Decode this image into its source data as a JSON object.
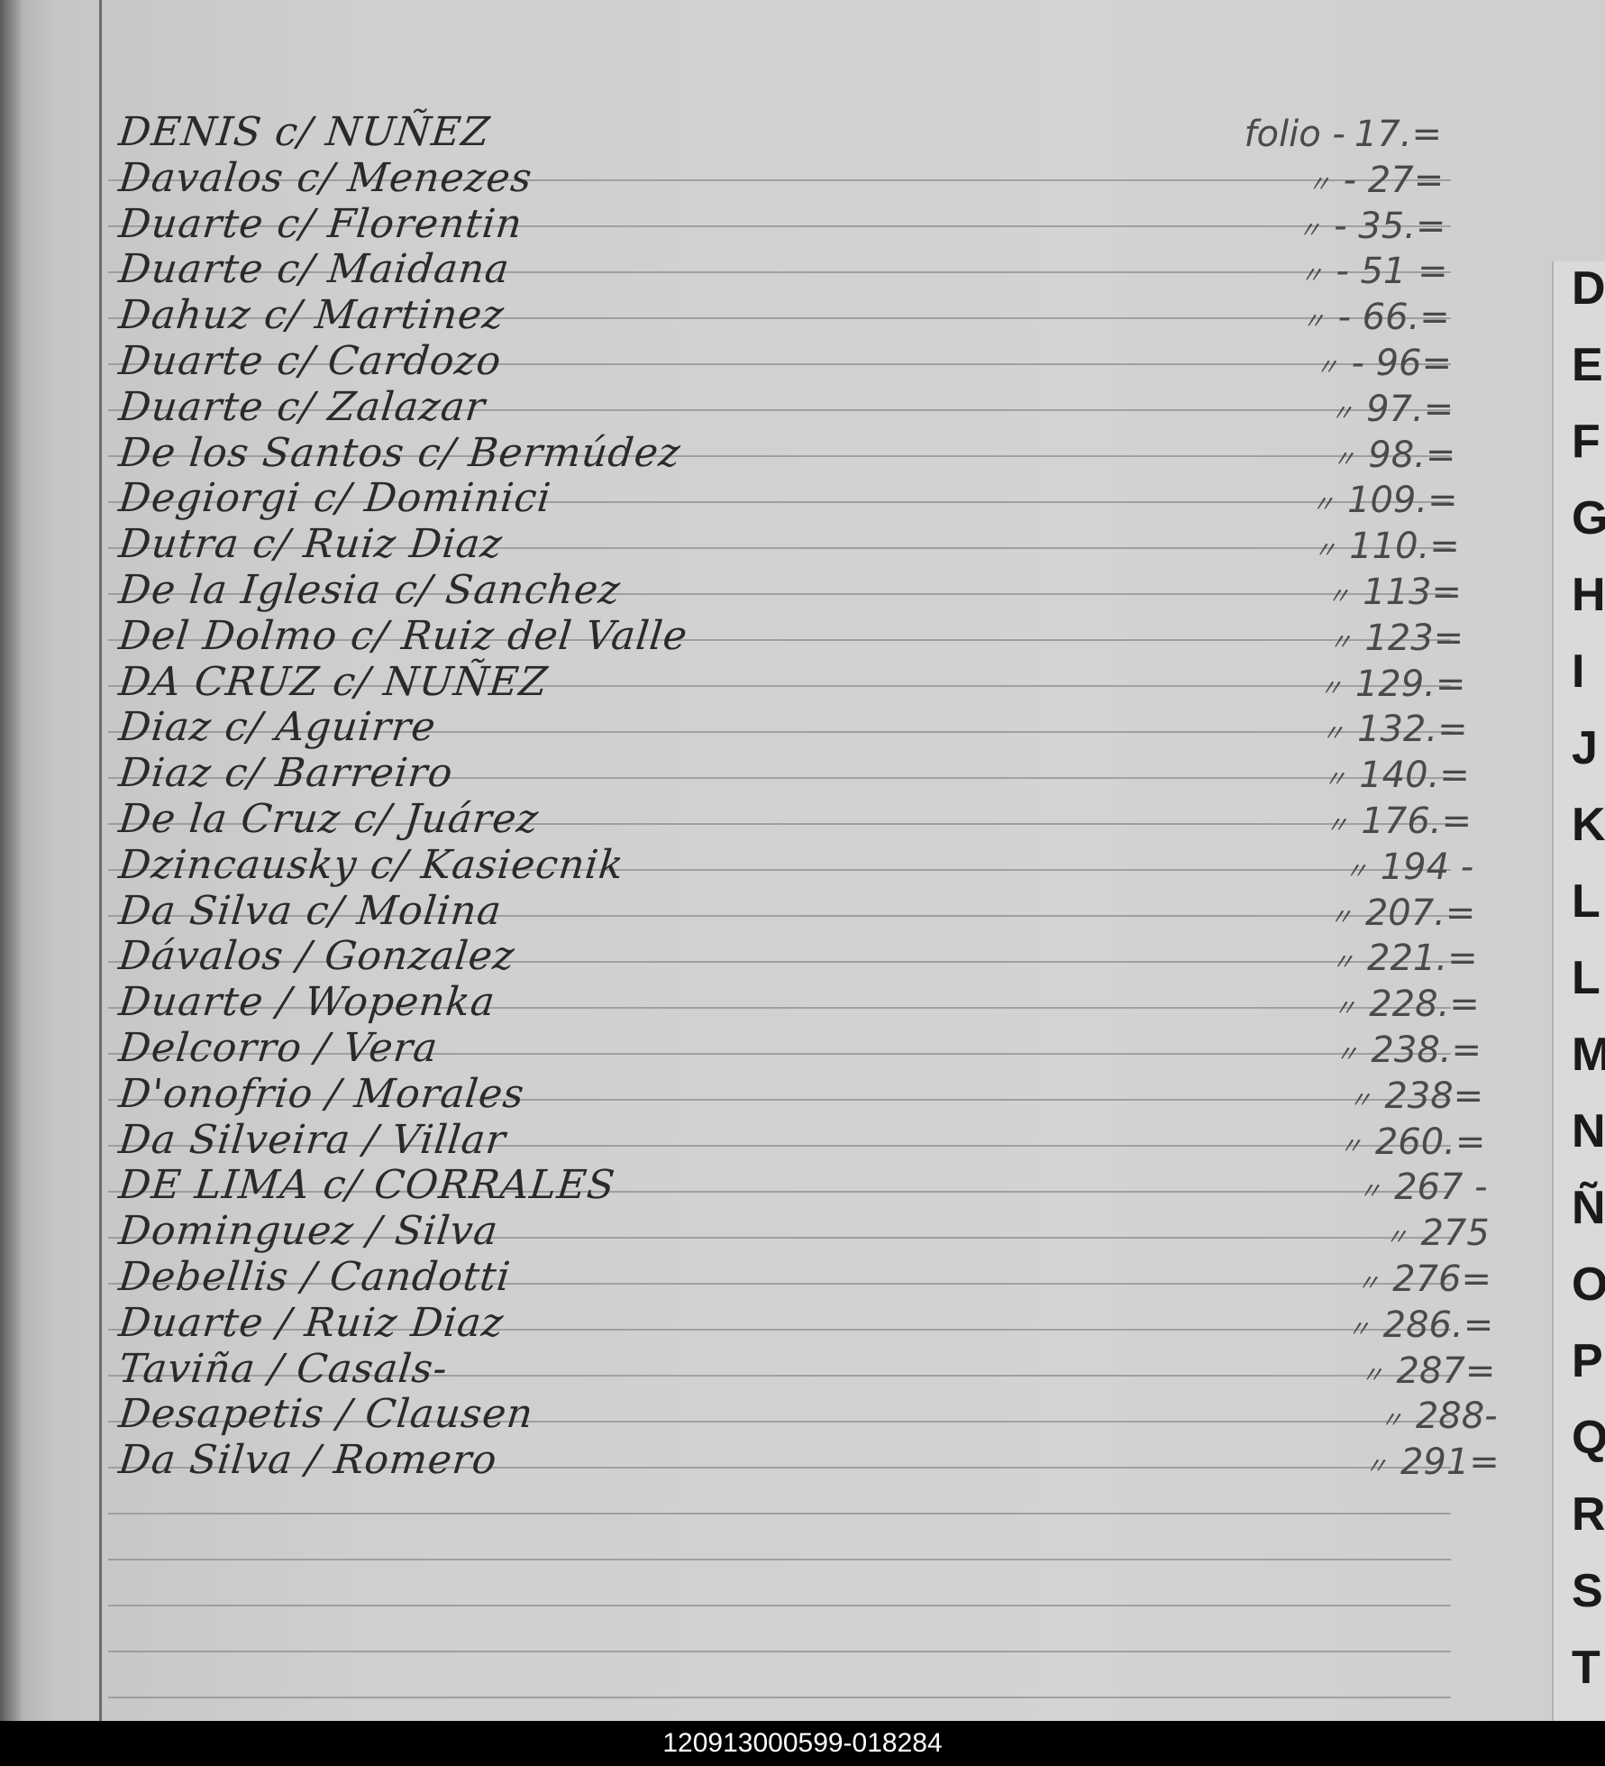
{
  "folio_label": "folio -",
  "ditto_mark": "〃",
  "entries": [
    {
      "name": "DENIS c/ NUÑEZ",
      "folio": "17.="
    },
    {
      "name": "Davalos c/ Menezes",
      "folio": "- 27="
    },
    {
      "name": "Duarte c/ Florentin",
      "folio": "- 35.="
    },
    {
      "name": "Duarte c/ Maidana",
      "folio": "- 51 ="
    },
    {
      "name": "Dahuz c/ Martinez",
      "folio": "- 66.="
    },
    {
      "name": "Duarte c/ Cardozo",
      "folio": "- 96="
    },
    {
      "name": "Duarte c/ Zalazar",
      "folio": "97.="
    },
    {
      "name": "De los Santos c/ Bermúdez",
      "folio": "98.="
    },
    {
      "name": "Degiorgi c/ Dominici",
      "folio": "109.="
    },
    {
      "name": "Dutra c/ Ruiz Diaz",
      "folio": "110.="
    },
    {
      "name": "De la Iglesia c/ Sanchez",
      "folio": "113="
    },
    {
      "name": "Del Dolmo c/ Ruiz del Valle",
      "folio": "123="
    },
    {
      "name": "DA CRUZ c/ NUÑEZ",
      "folio": "129.="
    },
    {
      "name": "Diaz c/ Aguirre",
      "folio": "132.="
    },
    {
      "name": "Diaz c/ Barreiro",
      "folio": "140.="
    },
    {
      "name": "De la Cruz c/ Juárez",
      "folio": "176.="
    },
    {
      "name": "Dzincausky c/ Kasiecnik",
      "folio": "194 -"
    },
    {
      "name": "Da Silva c/ Molina",
      "folio": "207.="
    },
    {
      "name": "Dávalos / Gonzalez",
      "folio": "221.="
    },
    {
      "name": "Duarte / Wopenka",
      "folio": "228.="
    },
    {
      "name": "Delcorro / Vera",
      "folio": "238.="
    },
    {
      "name": "D'onofrio / Morales",
      "folio": "238="
    },
    {
      "name": "Da Silveira / Villar",
      "folio": "260.="
    },
    {
      "name": "DE LIMA c/ CORRALES",
      "folio": "267 -"
    },
    {
      "name": "Dominguez / Silva",
      "folio": "275"
    },
    {
      "name": "Debellis / Candotti",
      "folio": "276="
    },
    {
      "name": "Duarte / Ruiz Diaz",
      "folio": "286.="
    },
    {
      "name": "Taviña / Casals-",
      "folio": "287="
    },
    {
      "name": "Desapetis / Clausen",
      "folio": "288-"
    },
    {
      "name": "Da Silva / Romero",
      "folio": "291="
    }
  ],
  "index_tabs": [
    "D",
    "E",
    "F",
    "G",
    "H",
    "I",
    "J",
    "K",
    "L",
    "L",
    "M",
    "N",
    "Ñ",
    "O",
    "P",
    "Q",
    "R",
    "S",
    "T"
  ],
  "footer_id": "120913000599-018284"
}
